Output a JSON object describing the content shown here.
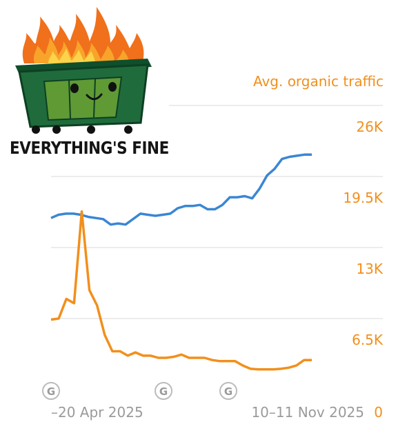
{
  "meme": {
    "caption": "EVERYTHING'S FINE",
    "colors": {
      "bin": "#1f6b3c",
      "lid": "#165a31",
      "face": "#5f9a35",
      "fire": "#f4731c"
    }
  },
  "chart_data": {
    "type": "line",
    "ylabel": "Avg. organic traffic",
    "yticks": [
      "26K",
      "19.5K",
      "13K",
      "6.5K",
      "0"
    ],
    "ylim": [
      0,
      26000
    ],
    "xticks": [
      "–20 Apr 2025",
      "10–11 Nov 2025"
    ],
    "annotation_markers": [
      "G",
      "G",
      "G"
    ],
    "grid": true,
    "series": [
      {
        "color": "#3a86d4",
        "values": [
          15700,
          16000,
          16100,
          16100,
          16000,
          15800,
          15700,
          15600,
          15100,
          15200,
          15100,
          15600,
          16100,
          16000,
          15900,
          16000,
          16100,
          16600,
          16800,
          16800,
          16900,
          16500,
          16500,
          16900,
          17600,
          17600,
          17700,
          17500,
          18400,
          19600,
          20200,
          21100,
          21300,
          21400,
          21500,
          21500
        ]
      },
      {
        "color": "#f28f1c",
        "values": [
          6400,
          6500,
          8300,
          7900,
          16300,
          9100,
          7700,
          5000,
          3500,
          3500,
          3100,
          3400,
          3100,
          3100,
          2900,
          2900,
          3000,
          3200,
          2900,
          2900,
          2900,
          2700,
          2600,
          2600,
          2600,
          2200,
          1900,
          1850,
          1850,
          1850,
          1900,
          2000,
          2200,
          2700,
          2700
        ]
      }
    ]
  }
}
